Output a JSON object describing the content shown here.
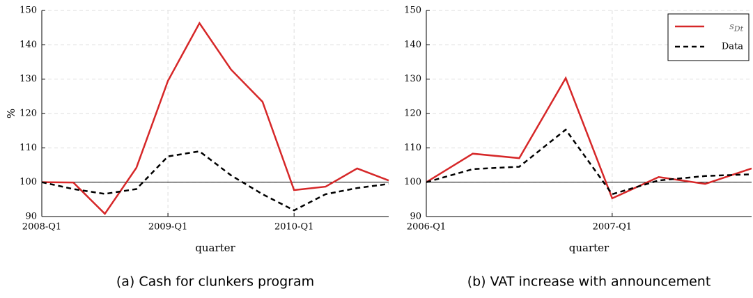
{
  "chart_data": [
    {
      "type": "line",
      "caption": "(a)  Cash for clunkers program",
      "xlabel": "quarter",
      "ylabel": "%",
      "x": [
        0,
        1,
        2,
        3,
        4,
        5,
        6,
        7,
        8,
        9,
        10,
        11
      ],
      "xlim": [
        0,
        11
      ],
      "xticks": [
        {
          "value": 0,
          "label": "2008-Q1"
        },
        {
          "value": 4,
          "label": "2009-Q1"
        },
        {
          "value": 8,
          "label": "2010-Q1"
        }
      ],
      "ylim": [
        90,
        150
      ],
      "yticks": [
        90,
        100,
        110,
        120,
        130,
        140,
        150
      ],
      "grid": true,
      "hline": 100,
      "series": [
        {
          "color": "#d62728",
          "dash": false,
          "values": [
            100,
            99.9,
            90.8,
            104.2,
            129.5,
            146.3,
            132.8,
            123.4,
            97.7,
            98.7,
            104,
            100.5
          ]
        },
        {
          "color": "#000000",
          "dash": true,
          "values": [
            100,
            98,
            96.6,
            98,
            107.5,
            109,
            102,
            96.5,
            91.8,
            96.5,
            98.3,
            99.5
          ]
        }
      ]
    },
    {
      "type": "line",
      "caption": "(b)  VAT increase with announcement",
      "xlabel": "quarter",
      "x": [
        0,
        1,
        2,
        3,
        4,
        5,
        6,
        7
      ],
      "xlim": [
        0,
        7
      ],
      "xticks": [
        {
          "value": 0,
          "label": "2006-Q1"
        },
        {
          "value": 4,
          "label": "2007-Q1"
        }
      ],
      "ylim": [
        90,
        150
      ],
      "yticks": [
        90,
        100,
        110,
        120,
        130,
        140,
        150
      ],
      "grid": true,
      "hline": 100,
      "legend": "upper right",
      "series": [
        {
          "name": "s_Dt",
          "color": "#d62728",
          "dash": false,
          "values": [
            100,
            108.3,
            107,
            130.3,
            95.3,
            101.5,
            99.5,
            104
          ]
        },
        {
          "name": "Data",
          "color": "#000000",
          "dash": true,
          "values": [
            100,
            103.8,
            104.5,
            115.3,
            96.5,
            100.5,
            101.8,
            102.3
          ]
        }
      ]
    }
  ]
}
